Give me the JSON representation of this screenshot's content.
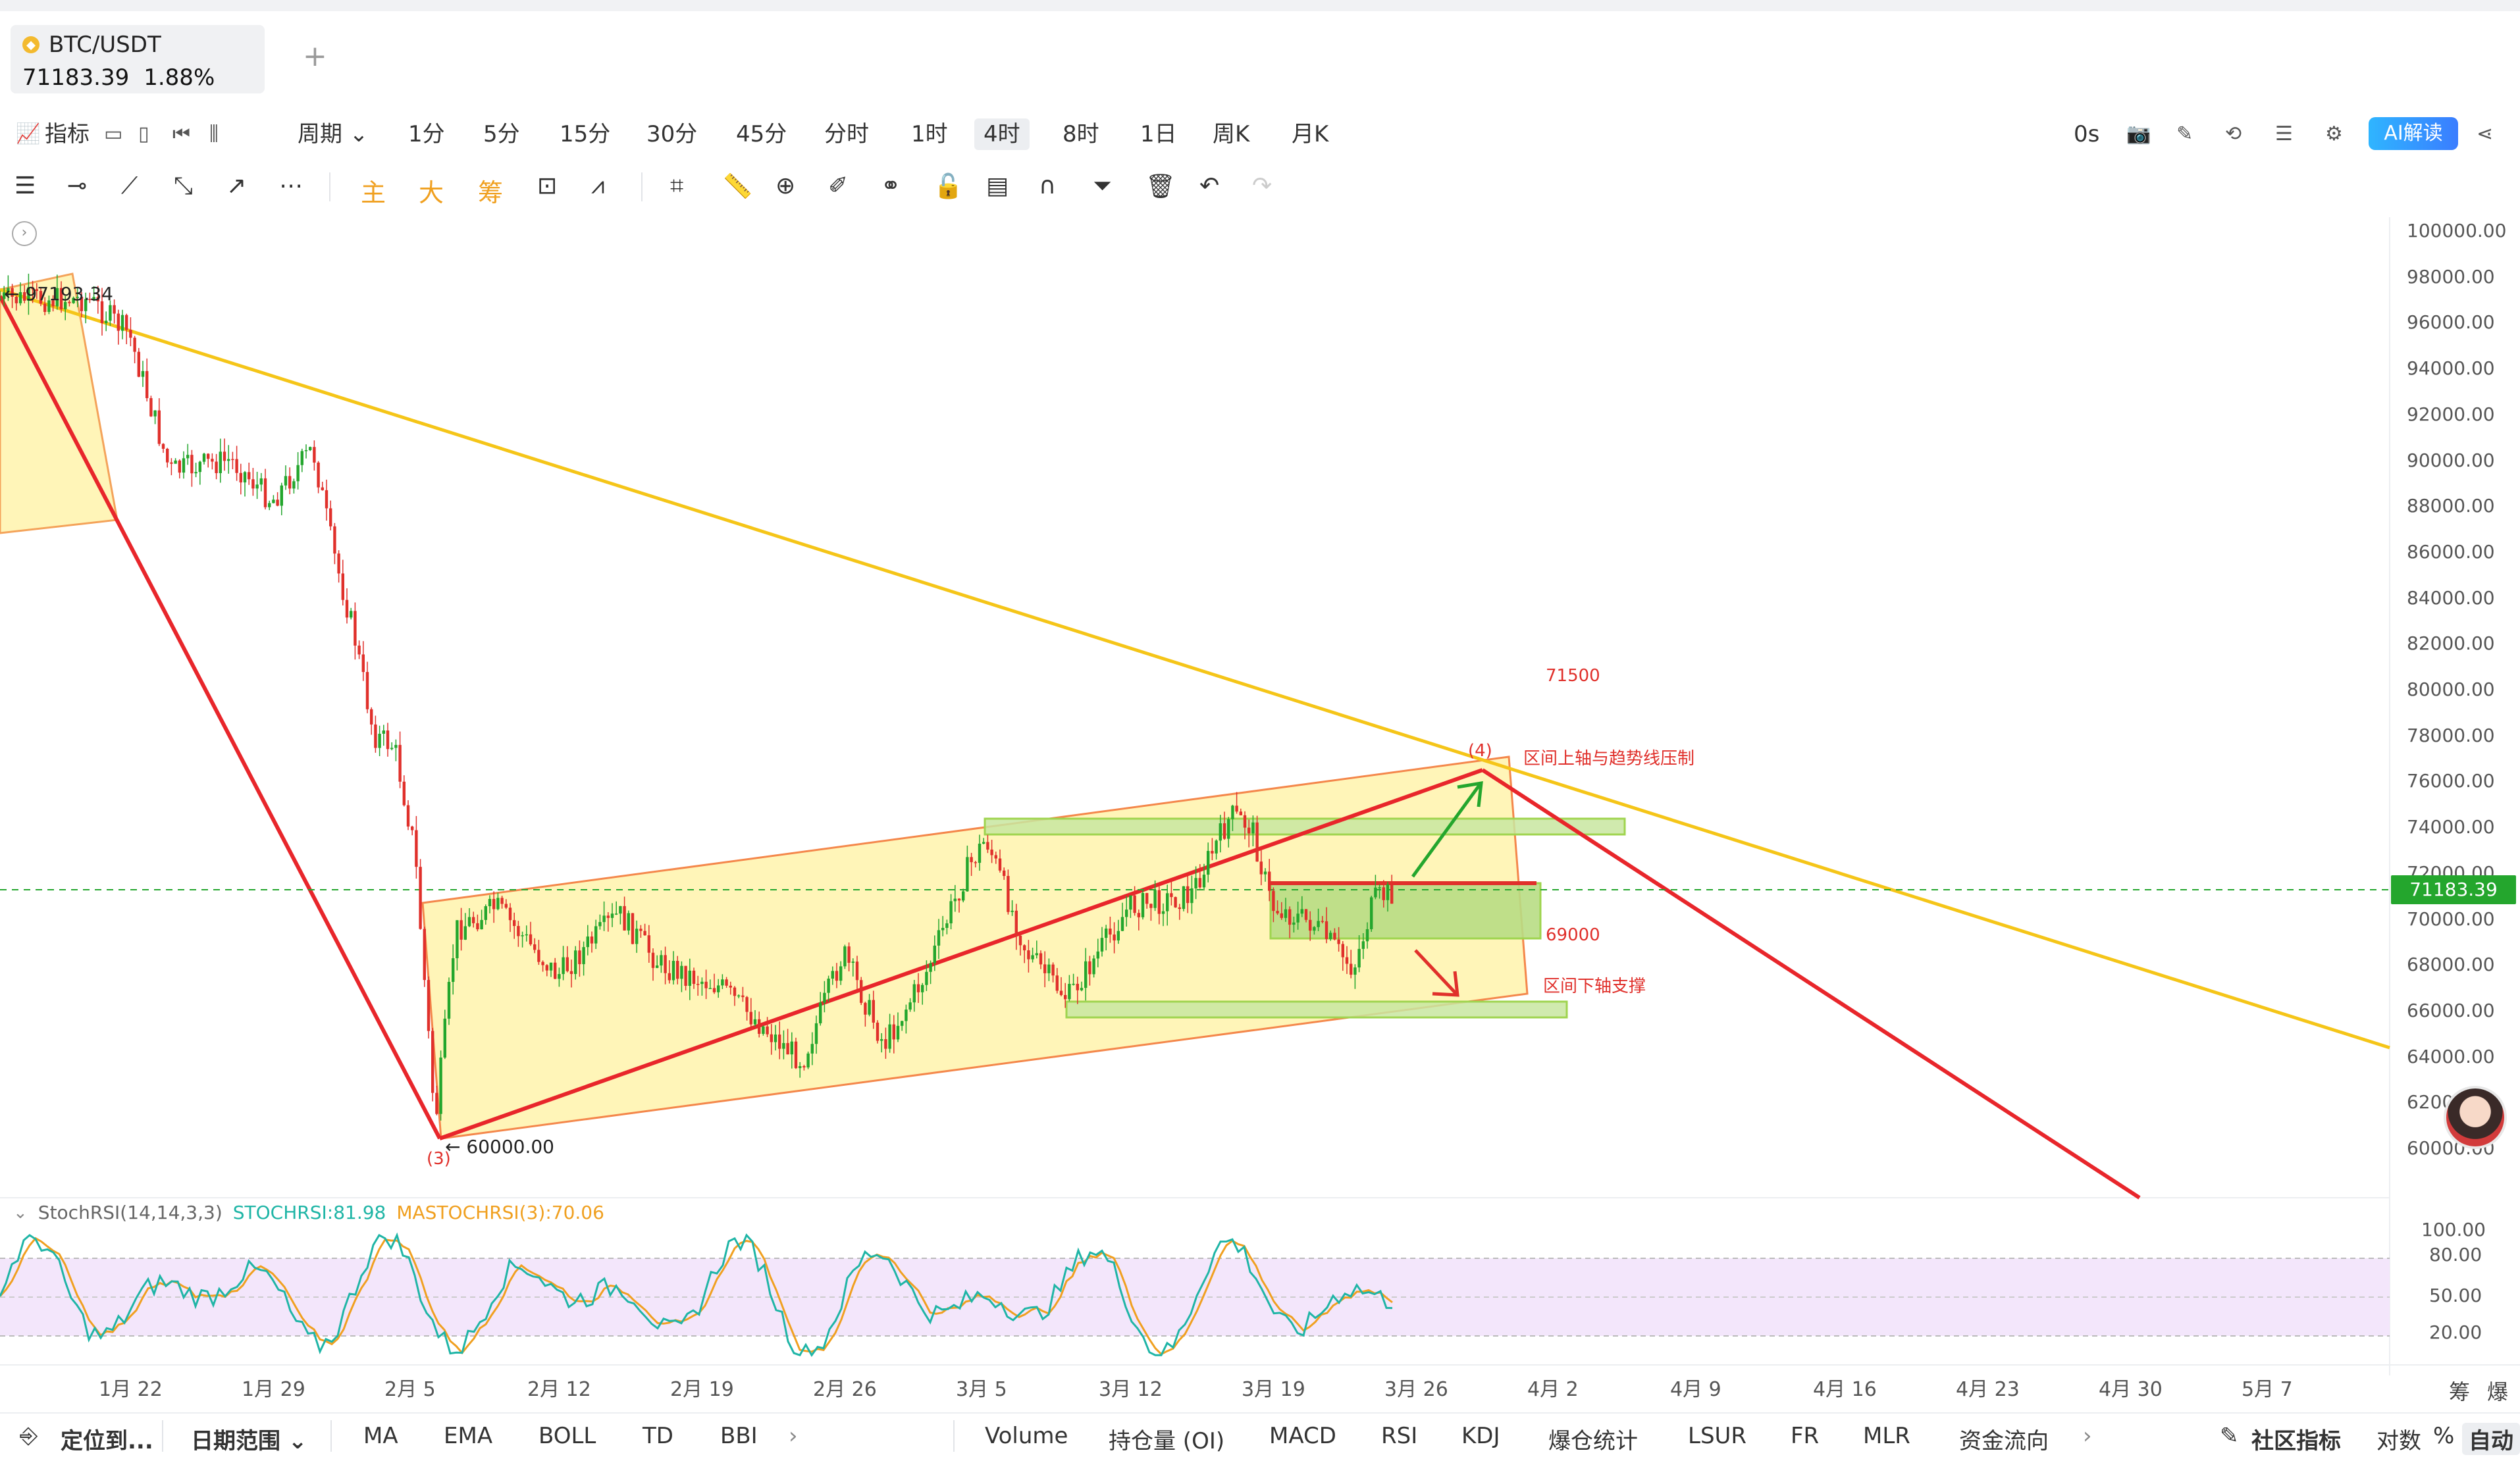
{
  "symbol": {
    "name": "BTC/USDT",
    "price": "71183.39",
    "change": "1.88%"
  },
  "add_tab": "+",
  "toolbar": {
    "indicators_label": "指标",
    "period_label": "周期",
    "periods": [
      "1分",
      "5分",
      "15分",
      "30分",
      "45分",
      "分时",
      "1时",
      "4时",
      "8时",
      "1日",
      "周K",
      "月K"
    ],
    "active_period": "4时",
    "timer": "0s",
    "ai_label": "AI解读"
  },
  "drawing_tools": {
    "zhu": "主",
    "da": "大",
    "chou": "筹"
  },
  "chart": {
    "y_ticks": [
      "100000.00",
      "98000.00",
      "96000.00",
      "94000.00",
      "92000.00",
      "90000.00",
      "88000.00",
      "86000.00",
      "84000.00",
      "82000.00",
      "80000.00",
      "78000.00",
      "76000.00",
      "74000.00",
      "72000.00",
      "70000.00",
      "68000.00",
      "66000.00",
      "64000.00",
      "62000.00",
      "60000.00"
    ],
    "current_price": "71183.39",
    "high_label": "97193.34",
    "low_label": "60000.00",
    "wave3": "(3)",
    "wave4": "(4)",
    "level_71500": "71500",
    "level_69000": "69000",
    "note_upper": "区间上轴与趋势线压制",
    "note_lower": "区间下轴支撑",
    "x_ticks": [
      "1月 22",
      "1月 29",
      "2月 5",
      "2月 12",
      "2月 19",
      "2月 26",
      "3月 5",
      "3月 12",
      "3月 19",
      "3月 26",
      "4月 2",
      "4月 9",
      "4月 16",
      "4月 23",
      "4月 30",
      "5月 7"
    ],
    "colors": {
      "up": "#24a62d",
      "down": "#e0302b",
      "channel_fill": "#fff5b8",
      "trend_yellow": "#f5c518",
      "trend_red": "#e8262b"
    }
  },
  "chart_data": {
    "type": "candlestick",
    "title": "BTC/USDT 4时",
    "ylim": [
      59000,
      100500
    ],
    "highlights": {
      "high": 97193.34,
      "low": 60000.0,
      "current": 71183.39,
      "resistance_zone": [
        73800,
        74500
      ],
      "mid_zone": [
        69000,
        71500
      ],
      "support_zone": [
        65800,
        66400
      ]
    },
    "price_path": [
      {
        "date": "1月 20",
        "price": 97000
      },
      {
        "date": "1月 22",
        "price": 95500
      },
      {
        "date": "1月 24",
        "price": 89500
      },
      {
        "date": "1月 27",
        "price": 90000
      },
      {
        "date": "1月 29",
        "price": 88200
      },
      {
        "date": "1月 31",
        "price": 90500
      },
      {
        "date": "2月 1",
        "price": 86000
      },
      {
        "date": "2月 2",
        "price": 82500
      },
      {
        "date": "2月 3",
        "price": 78000
      },
      {
        "date": "2月 4",
        "price": 77500
      },
      {
        "date": "2月 5",
        "price": 73000
      },
      {
        "date": "2月 6",
        "price": 61000
      },
      {
        "date": "2月 7",
        "price": 69500
      },
      {
        "date": "2月 9",
        "price": 70500
      },
      {
        "date": "2月 12",
        "price": 67500
      },
      {
        "date": "2月 15",
        "price": 70200
      },
      {
        "date": "2月 17",
        "price": 68000
      },
      {
        "date": "2月 20",
        "price": 67000
      },
      {
        "date": "2月 23",
        "price": 64500
      },
      {
        "date": "2月 24",
        "price": 63800
      },
      {
        "date": "2月 26",
        "price": 68500
      },
      {
        "date": "2月 28",
        "price": 64500
      },
      {
        "date": "3月 2",
        "price": 67500
      },
      {
        "date": "3月 4",
        "price": 72000
      },
      {
        "date": "3月 5",
        "price": 73500
      },
      {
        "date": "3月 7",
        "price": 68500
      },
      {
        "date": "3月 9",
        "price": 66500
      },
      {
        "date": "3月 12",
        "price": 70500
      },
      {
        "date": "3月 15",
        "price": 71000
      },
      {
        "date": "3月 17",
        "price": 74500
      },
      {
        "date": "3月 18",
        "price": 74000
      },
      {
        "date": "3月 19",
        "price": 70500
      },
      {
        "date": "3月 21",
        "price": 69800
      },
      {
        "date": "3月 23",
        "price": 67800
      },
      {
        "date": "3月 24",
        "price": 70800
      },
      {
        "date": "3月 25",
        "price": 71183
      }
    ],
    "stochrsi": {
      "params": "14,14,3,3",
      "stochrsi": 81.98,
      "ma": 70.06,
      "levels": [
        100,
        80,
        50,
        20
      ]
    }
  },
  "indicator": {
    "name": "StochRSI(14,14,3,3)",
    "v1": "STOCHRSI:81.98",
    "v2": "MASTOCHRSI(3):70.06",
    "ticks": [
      "100.00",
      "80.00",
      "50.00",
      "20.00"
    ]
  },
  "right_labels": {
    "chou": "筹",
    "bao": "爆"
  },
  "bottom": {
    "locate": "定位到...",
    "date_range": "日期范围",
    "left_inds": [
      "MA",
      "EMA",
      "BOLL",
      "TD",
      "BBI"
    ],
    "right_inds": [
      "Volume",
      "持仓量 (OI)",
      "MACD",
      "RSI",
      "KDJ",
      "爆仓统计",
      "LSUR",
      "FR",
      "MLR",
      "资金流向"
    ],
    "community": "社区指标",
    "log": "对数",
    "pct": "%",
    "auto": "自动"
  }
}
